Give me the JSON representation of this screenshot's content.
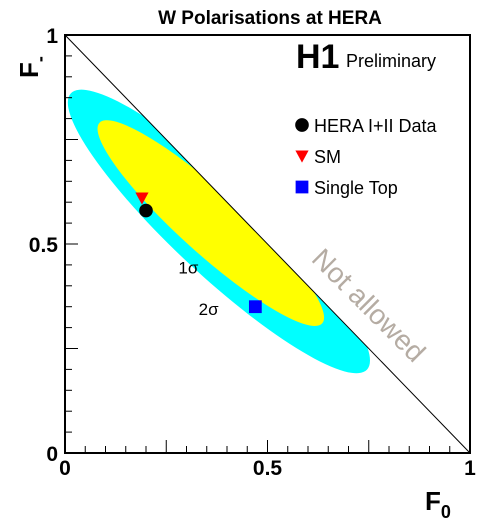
{
  "chart_data": {
    "type": "scatter",
    "title": "W Polarisations at HERA",
    "xlabel": "F",
    "xlabel_sub": "0",
    "ylabel": "F",
    "ylabel_sub": "-",
    "xlim": [
      0,
      1
    ],
    "ylim": [
      0,
      1
    ],
    "x_ticks": [
      {
        "value": 0,
        "label": "0"
      },
      {
        "value": 0.5,
        "label": "0.5"
      },
      {
        "value": 1,
        "label": "1"
      }
    ],
    "y_ticks": [
      {
        "value": 0,
        "label": "0"
      },
      {
        "value": 0.5,
        "label": "0.5"
      },
      {
        "value": 1,
        "label": "1"
      }
    ],
    "grid": false,
    "experiment_label": "H1",
    "status_label": "Preliminary",
    "legend_position": "top-right",
    "legend": [
      {
        "label": "HERA I+II Data",
        "marker": "circle",
        "color": "#000000"
      },
      {
        "label": "SM",
        "marker": "triangle-down",
        "color": "#ff0000"
      },
      {
        "label": "Single Top",
        "marker": "square",
        "color": "#0000ff"
      }
    ],
    "points": [
      {
        "series": "HERA I+II Data",
        "x": 0.2,
        "y": 0.58
      },
      {
        "series": "SM",
        "x": 0.19,
        "y": 0.61
      },
      {
        "series": "Single Top",
        "x": 0.47,
        "y": 0.35
      }
    ],
    "contours": [
      {
        "label": "2σ",
        "color": "#00ffff",
        "center": [
          0.38,
          0.53
        ],
        "semi_axes": [
          0.5,
          0.105
        ],
        "angle_deg": -43
      },
      {
        "label": "1σ",
        "color": "#ffff00",
        "center": [
          0.36,
          0.55
        ],
        "semi_axes": [
          0.37,
          0.074
        ],
        "angle_deg": -42
      }
    ],
    "physical_boundary": {
      "line": [
        [
          0,
          1
        ],
        [
          1,
          0
        ]
      ],
      "label": "Not allowed",
      "label_color": "#b5aca3"
    },
    "annotations": [
      {
        "text": "1σ",
        "x": 0.28,
        "y": 0.43
      },
      {
        "text": "2σ",
        "x": 0.33,
        "y": 0.33
      }
    ]
  }
}
